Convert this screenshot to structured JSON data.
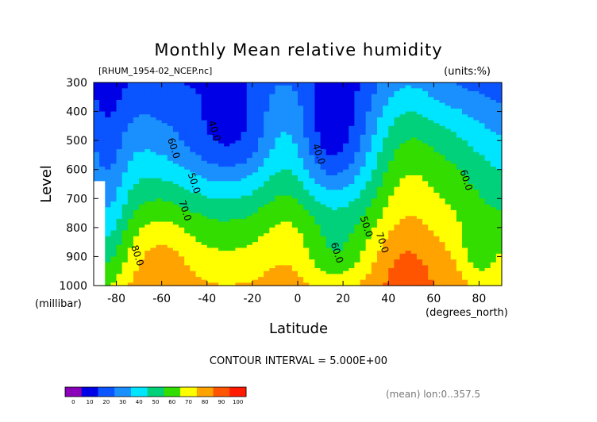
{
  "chart_data": {
    "type": "heatmap",
    "subtype": "filled-contour",
    "title": "Monthly Mean relative humidity",
    "file_label": "[RHUM_1954-02_NCEP.nc]",
    "units_label": "(units:%)",
    "xlabel": "Latitude",
    "x_units": "(degrees_north)",
    "ylabel": "Level",
    "y_units": "(millibar)",
    "xlim": [
      -90,
      90
    ],
    "ylim": [
      1000,
      300
    ],
    "x_ticks": [
      -80,
      -60,
      -40,
      -20,
      0,
      20,
      40,
      60,
      80
    ],
    "y_ticks": [
      300,
      400,
      500,
      600,
      700,
      800,
      900,
      1000
    ],
    "contour_interval_text": "CONTOUR INTERVAL = 5.000E+00",
    "averaging_note": "(mean) lon:0..357.5",
    "colorbar": {
      "levels": [
        0,
        10,
        20,
        30,
        40,
        50,
        60,
        70,
        80,
        90,
        100
      ],
      "colors": [
        "#8a00b8",
        "#0000e6",
        "#0a55ff",
        "#1a90ff",
        "#00e5ff",
        "#00d17a",
        "#33dd00",
        "#ffff00",
        "#ffa300",
        "#ff5500",
        "#ff1a00"
      ]
    },
    "contour_labels": [
      {
        "text": "40.0",
        "lat": -38,
        "lev": 470
      },
      {
        "text": "50.0",
        "lat": -47,
        "lev": 650
      },
      {
        "text": "60.0",
        "lat": -56,
        "lev": 530
      },
      {
        "text": "70.0",
        "lat": -51,
        "lev": 745
      },
      {
        "text": "80.0",
        "lat": -72,
        "lev": 900
      },
      {
        "text": "40.0",
        "lat": 8,
        "lev": 550
      },
      {
        "text": "50.0",
        "lat": 29,
        "lev": 800
      },
      {
        "text": "60.0",
        "lat": 16,
        "lev": 890
      },
      {
        "text": "70.0",
        "lat": 36,
        "lev": 855
      },
      {
        "text": "60.0",
        "lat": 73,
        "lev": 640
      }
    ]
  }
}
